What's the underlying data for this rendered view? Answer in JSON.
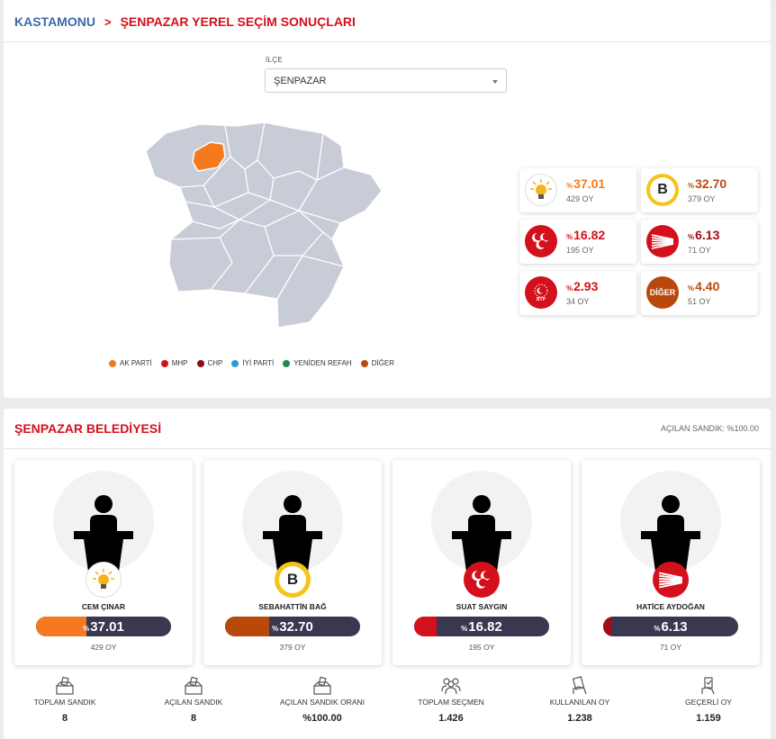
{
  "breadcrumb": {
    "city": "KASTAMONU",
    "page": "ŞENPAZAR YEREL SEÇİM SONUÇLARI"
  },
  "district_select": {
    "label": "İLÇE",
    "value": "ŞENPAZAR"
  },
  "legend": [
    {
      "label": "AK PARTİ",
      "color": "#f5791f"
    },
    {
      "label": "MHP",
      "color": "#d4101c"
    },
    {
      "label": "CHP",
      "color": "#8b0d14"
    },
    {
      "label": "İYİ PARTİ",
      "color": "#2f9ad6"
    },
    {
      "label": "YENİDEN REFAH",
      "color": "#1f8a52"
    },
    {
      "label": "DİĞER",
      "color": "#b9490b"
    }
  ],
  "party_results": [
    {
      "party": "akparti",
      "icon": "lightbulb-icon",
      "prefix": "%",
      "percent": "37.01",
      "votes": "429 OY",
      "color": "#f5791f"
    },
    {
      "party": "bagimsiz",
      "icon": "b-icon",
      "prefix": "%",
      "percent": "32.70",
      "votes": "379 OY",
      "color": "#b9490b"
    },
    {
      "party": "mhp",
      "icon": "crescents-icon",
      "prefix": "%",
      "percent": "16.82",
      "votes": "195 OY",
      "color": "#d4101c"
    },
    {
      "party": "chp",
      "icon": "six-arrows-icon",
      "prefix": "%",
      "percent": "6.13",
      "votes": "71 OY",
      "color": "#a00d16"
    },
    {
      "party": "btp",
      "icon": "btp-icon",
      "prefix": "%",
      "percent": "2.93",
      "votes": "34 OY",
      "color": "#d4101c",
      "logo_text": "BTP"
    },
    {
      "party": "diger",
      "icon": "diger-icon",
      "prefix": "%",
      "percent": "4.40",
      "votes": "51 OY",
      "color": "#b9490b",
      "logo_text": "DİĞER"
    }
  ],
  "municipality": {
    "title": "ŞENPAZAR BELEDİYESİ",
    "opened": "AÇILAN SANDIK: %100.00"
  },
  "candidates": [
    {
      "name": "CEM ÇINAR",
      "prefix": "%",
      "percent": "37.01",
      "share": 37.01,
      "votes": "429 OY",
      "color": "#f5791f",
      "party_icon": "lightbulb-icon"
    },
    {
      "name": "SEBAHATTİN BAĞ",
      "prefix": "%",
      "percent": "32.70",
      "share": 32.7,
      "votes": "379 OY",
      "color": "#b9490b",
      "party_icon": "b-icon",
      "logo_text": "B"
    },
    {
      "name": "SUAT SAYGIN",
      "prefix": "%",
      "percent": "16.82",
      "share": 16.82,
      "votes": "195 OY",
      "color": "#d4101c",
      "party_icon": "crescents-icon"
    },
    {
      "name": "HATİCE AYDOĞAN",
      "prefix": "%",
      "percent": "6.13",
      "share": 6.13,
      "votes": "71 OY",
      "color": "#a00d16",
      "party_icon": "six-arrows-icon"
    }
  ],
  "stats": [
    {
      "label": "TOPLAM SANDIK",
      "value": "8",
      "icon": "ballot-box-icon"
    },
    {
      "label": "AÇILAN SANDIK",
      "value": "8",
      "icon": "ballot-box-icon"
    },
    {
      "label": "AÇILAN SANDIK ORANI",
      "value": "%100.00",
      "icon": "ballot-box-icon"
    },
    {
      "label": "TOPLAM SEÇMEN",
      "value": "1.426",
      "icon": "voters-icon"
    },
    {
      "label": "KULLANILAN OY",
      "value": "1.238",
      "icon": "vote-hand-icon"
    },
    {
      "label": "GEÇERLİ OY",
      "value": "1.159",
      "icon": "valid-vote-icon"
    }
  ]
}
